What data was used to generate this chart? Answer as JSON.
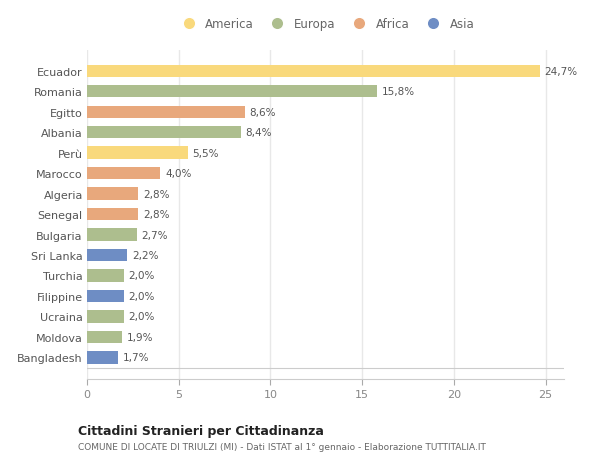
{
  "countries": [
    "Ecuador",
    "Romania",
    "Egitto",
    "Albania",
    "Perù",
    "Marocco",
    "Algeria",
    "Senegal",
    "Bulgaria",
    "Sri Lanka",
    "Turchia",
    "Filippine",
    "Ucraina",
    "Moldova",
    "Bangladesh"
  ],
  "values": [
    24.7,
    15.8,
    8.6,
    8.4,
    5.5,
    4.0,
    2.8,
    2.8,
    2.7,
    2.2,
    2.0,
    2.0,
    2.0,
    1.9,
    1.7
  ],
  "labels": [
    "24,7%",
    "15,8%",
    "8,6%",
    "8,4%",
    "5,5%",
    "4,0%",
    "2,8%",
    "2,8%",
    "2,7%",
    "2,2%",
    "2,0%",
    "2,0%",
    "2,0%",
    "1,9%",
    "1,7%"
  ],
  "continents": [
    "America",
    "Europa",
    "Africa",
    "Europa",
    "America",
    "Africa",
    "Africa",
    "Africa",
    "Europa",
    "Asia",
    "Europa",
    "Asia",
    "Europa",
    "Europa",
    "Asia"
  ],
  "colors": {
    "America": "#F9D97C",
    "Europa": "#ADBE8E",
    "Africa": "#E8A87C",
    "Asia": "#6E8DC4"
  },
  "legend_order": [
    "America",
    "Europa",
    "Africa",
    "Asia"
  ],
  "title": "Cittadini Stranieri per Cittadinanza",
  "subtitle": "COMUNE DI LOCATE DI TRIULZI (MI) - Dati ISTAT al 1° gennaio - Elaborazione TUTTITALIA.IT",
  "xlim": [
    0,
    26
  ],
  "background_color": "#ffffff",
  "grid_color": "#e8e8e8",
  "bar_height": 0.6
}
